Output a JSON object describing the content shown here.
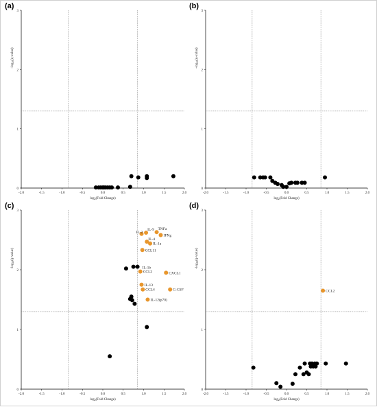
{
  "colors": {
    "black": "#000000",
    "highlight": "#e8962c",
    "guide": "#888888"
  },
  "chart_data": [
    {
      "type": "scatter",
      "panel_label": "(a)",
      "xlabel": "log2(Fold Change)",
      "ylabel": "-log10(q-value)",
      "xlim": [
        -2,
        2
      ],
      "ylim": [
        0,
        3
      ],
      "x_ticks": [
        "-2.0",
        "-1.5",
        "-1.0",
        "-0.5",
        "0.0",
        "0.5",
        "1.0",
        "1.5",
        "2.0"
      ],
      "y_ticks": [
        "0",
        "1",
        "2",
        "3"
      ],
      "vlines": [
        -0.85,
        0.85
      ],
      "hline": 1.3,
      "points": [
        {
          "x": -0.17,
          "y": 0.01,
          "label": "",
          "highlight": false
        },
        {
          "x": -0.1,
          "y": 0.01,
          "label": "",
          "highlight": false
        },
        {
          "x": -0.05,
          "y": 0.01,
          "label": "",
          "highlight": false
        },
        {
          "x": 0.0,
          "y": 0.01,
          "label": "",
          "highlight": false
        },
        {
          "x": 0.03,
          "y": 0.01,
          "label": "",
          "highlight": false
        },
        {
          "x": 0.07,
          "y": 0.01,
          "label": "",
          "highlight": false
        },
        {
          "x": 0.12,
          "y": 0.01,
          "label": "",
          "highlight": false
        },
        {
          "x": 0.17,
          "y": 0.01,
          "label": "",
          "highlight": false
        },
        {
          "x": 0.22,
          "y": 0.01,
          "label": "",
          "highlight": false
        },
        {
          "x": 0.37,
          "y": 0.01,
          "label": "",
          "highlight": false
        },
        {
          "x": 0.67,
          "y": 0.02,
          "label": "",
          "highlight": false
        },
        {
          "x": 0.7,
          "y": 0.2,
          "label": "",
          "highlight": false
        },
        {
          "x": 0.87,
          "y": 0.18,
          "label": "",
          "highlight": false
        },
        {
          "x": 1.08,
          "y": 0.2,
          "label": "",
          "highlight": false
        },
        {
          "x": 1.08,
          "y": 0.17,
          "label": "",
          "highlight": false
        },
        {
          "x": 1.73,
          "y": 0.2,
          "label": "",
          "highlight": false
        }
      ]
    },
    {
      "type": "scatter",
      "panel_label": "(b)",
      "xlabel": "log2(Fold Change)",
      "ylabel": "-log10(q-value)",
      "xlim": [
        -2,
        2
      ],
      "ylim": [
        0,
        3
      ],
      "x_ticks": [
        "-2.0",
        "-1.5",
        "-1.0",
        "-0.5",
        "0.0",
        "0.5",
        "1.0",
        "1.5",
        "2.0"
      ],
      "y_ticks": [
        "0",
        "1",
        "2",
        "3"
      ],
      "vlines": [
        -0.85,
        0.85
      ],
      "hline": 1.3,
      "points": [
        {
          "x": -0.8,
          "y": 0.18,
          "label": "",
          "highlight": false
        },
        {
          "x": -0.65,
          "y": 0.18,
          "label": "",
          "highlight": false
        },
        {
          "x": -0.58,
          "y": 0.18,
          "label": "",
          "highlight": false
        },
        {
          "x": -0.53,
          "y": 0.18,
          "label": "",
          "highlight": false
        },
        {
          "x": -0.4,
          "y": 0.18,
          "label": "",
          "highlight": false
        },
        {
          "x": -0.35,
          "y": 0.12,
          "label": "",
          "highlight": false
        },
        {
          "x": -0.28,
          "y": 0.09,
          "label": "",
          "highlight": false
        },
        {
          "x": -0.22,
          "y": 0.07,
          "label": "",
          "highlight": false
        },
        {
          "x": -0.12,
          "y": 0.05,
          "label": "",
          "highlight": false
        },
        {
          "x": -0.08,
          "y": 0.02,
          "label": "",
          "highlight": false
        },
        {
          "x": 0.0,
          "y": 0.02,
          "label": "",
          "highlight": false
        },
        {
          "x": 0.07,
          "y": 0.08,
          "label": "",
          "highlight": false
        },
        {
          "x": 0.12,
          "y": 0.09,
          "label": "",
          "highlight": false
        },
        {
          "x": 0.22,
          "y": 0.09,
          "label": "",
          "highlight": false
        },
        {
          "x": 0.27,
          "y": 0.09,
          "label": "",
          "highlight": false
        },
        {
          "x": 0.38,
          "y": 0.09,
          "label": "",
          "highlight": false
        },
        {
          "x": 0.45,
          "y": 0.09,
          "label": "",
          "highlight": false
        },
        {
          "x": 0.95,
          "y": 0.18,
          "label": "",
          "highlight": false
        }
      ]
    },
    {
      "type": "scatter",
      "panel_label": "(c)",
      "xlabel": "log2(Fold Change)",
      "ylabel": "-log10(q-value)",
      "xlim": [
        -2,
        2
      ],
      "ylim": [
        0,
        3
      ],
      "x_ticks": [
        "-2.0",
        "-1.5",
        "-1.0",
        "-0.5",
        "0.0",
        "0.5",
        "1.0",
        "1.5",
        "2.0"
      ],
      "y_ticks": [
        "0",
        "1",
        "2",
        "3"
      ],
      "vlines": [
        -0.85,
        0.85
      ],
      "hline": 1.3,
      "points": [
        {
          "x": 0.17,
          "y": 0.55,
          "label": "",
          "highlight": false
        },
        {
          "x": 0.57,
          "y": 2.02,
          "label": "",
          "highlight": false
        },
        {
          "x": 0.67,
          "y": 1.51,
          "label": "",
          "highlight": false
        },
        {
          "x": 0.7,
          "y": 1.55,
          "label": "",
          "highlight": false
        },
        {
          "x": 0.72,
          "y": 1.49,
          "label": "",
          "highlight": false
        },
        {
          "x": 0.75,
          "y": 2.05,
          "label": "",
          "highlight": false
        },
        {
          "x": 0.78,
          "y": 1.43,
          "label": "",
          "highlight": false
        },
        {
          "x": 0.85,
          "y": 2.05,
          "label": "",
          "highlight": false
        },
        {
          "x": 1.08,
          "y": 1.04,
          "label": "",
          "highlight": false
        },
        {
          "x": 0.95,
          "y": 2.6,
          "label": "IL-2",
          "highlight": true
        },
        {
          "x": 1.06,
          "y": 2.62,
          "label": "IL-9",
          "highlight": true
        },
        {
          "x": 1.32,
          "y": 2.63,
          "label": "TNFa",
          "highlight": true
        },
        {
          "x": 1.42,
          "y": 2.58,
          "label": "IFNg",
          "highlight": true
        },
        {
          "x": 1.08,
          "y": 2.47,
          "label": "IL-4",
          "highlight": true
        },
        {
          "x": 1.16,
          "y": 2.44,
          "label": "IL-1a",
          "highlight": true
        },
        {
          "x": 0.97,
          "y": 2.33,
          "label": "CCL11",
          "highlight": true
        },
        {
          "x": 0.92,
          "y": 1.97,
          "label": "CCL2",
          "highlight": true
        },
        {
          "x": 1.55,
          "y": 1.95,
          "label": "CXCL1",
          "highlight": true
        },
        {
          "x": 0.95,
          "y": 1.75,
          "label": "IL-13",
          "highlight": true
        },
        {
          "x": 0.98,
          "y": 1.67,
          "label": "CCL4",
          "highlight": true
        },
        {
          "x": 1.65,
          "y": 1.67,
          "label": "G-CSF",
          "highlight": true
        },
        {
          "x": 1.1,
          "y": 1.5,
          "label": "IL-12(p70)",
          "highlight": true
        }
      ],
      "annotations": [
        {
          "text": "IL-1b",
          "x": 0.9,
          "y": 2.04
        }
      ]
    },
    {
      "type": "scatter",
      "panel_label": "(d)",
      "xlabel": "log2(Fold Change)",
      "ylabel": "-log10(q-value)",
      "xlim": [
        -2,
        2
      ],
      "ylim": [
        0,
        3
      ],
      "x_ticks": [
        "-2.0",
        "-1.5",
        "-1.0",
        "-0.5",
        "0.0",
        "0.5",
        "1.0",
        "1.5",
        "2.0"
      ],
      "y_ticks": [
        "0",
        "1",
        "2",
        "3"
      ],
      "vlines": [
        -0.85,
        0.85
      ],
      "hline": 1.3,
      "points": [
        {
          "x": -0.82,
          "y": 0.36,
          "label": "",
          "highlight": false
        },
        {
          "x": -0.25,
          "y": 0.1,
          "label": "",
          "highlight": false
        },
        {
          "x": -0.15,
          "y": 0.04,
          "label": "",
          "highlight": false
        },
        {
          "x": 0.15,
          "y": 0.09,
          "label": "",
          "highlight": false
        },
        {
          "x": 0.22,
          "y": 0.25,
          "label": "",
          "highlight": false
        },
        {
          "x": 0.33,
          "y": 0.36,
          "label": "",
          "highlight": false
        },
        {
          "x": 0.42,
          "y": 0.25,
          "label": "",
          "highlight": false
        },
        {
          "x": 0.45,
          "y": 0.43,
          "label": "",
          "highlight": false
        },
        {
          "x": 0.5,
          "y": 0.28,
          "label": "",
          "highlight": false
        },
        {
          "x": 0.55,
          "y": 0.25,
          "label": "",
          "highlight": false
        },
        {
          "x": 0.58,
          "y": 0.43,
          "label": "",
          "highlight": false
        },
        {
          "x": 0.6,
          "y": 0.38,
          "label": "",
          "highlight": false
        },
        {
          "x": 0.63,
          "y": 0.43,
          "label": "",
          "highlight": false
        },
        {
          "x": 0.66,
          "y": 0.38,
          "label": "",
          "highlight": false
        },
        {
          "x": 0.7,
          "y": 0.43,
          "label": "",
          "highlight": false
        },
        {
          "x": 0.72,
          "y": 0.38,
          "label": "",
          "highlight": false
        },
        {
          "x": 0.75,
          "y": 0.43,
          "label": "",
          "highlight": false
        },
        {
          "x": 0.97,
          "y": 0.43,
          "label": "",
          "highlight": false
        },
        {
          "x": 1.47,
          "y": 0.43,
          "label": "",
          "highlight": false
        },
        {
          "x": 0.9,
          "y": 1.65,
          "label": "CCL2",
          "highlight": true
        }
      ]
    }
  ]
}
